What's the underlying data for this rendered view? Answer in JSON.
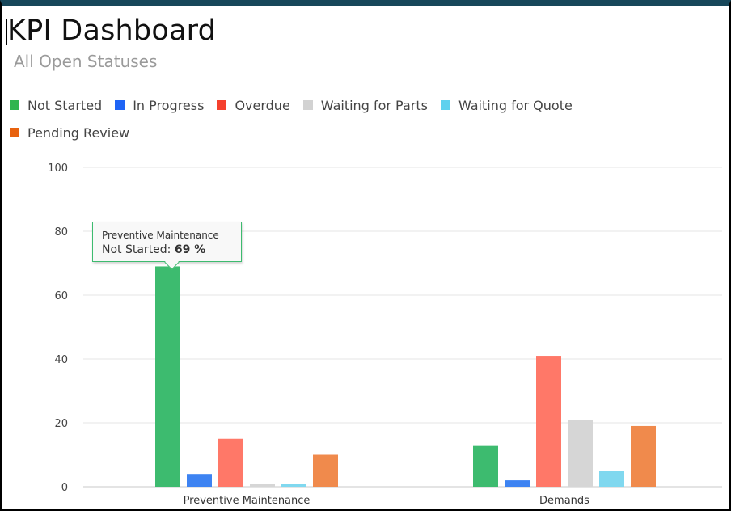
{
  "header": {
    "title": "KPI Dashboard",
    "subtitle": "All Open Statuses"
  },
  "tooltip": {
    "category": "Preventive Maintenance",
    "series_label": "Not Started:",
    "value_text": "69 %"
  },
  "chart_data": {
    "type": "bar",
    "categories": [
      "Preventive Maintenance",
      "Demands"
    ],
    "series": [
      {
        "name": "Not Started",
        "color": "#3dbb6f",
        "values": [
          69,
          13
        ]
      },
      {
        "name": "In Progress",
        "color": "#3d83f2",
        "values": [
          4,
          2
        ]
      },
      {
        "name": "Overdue",
        "color": "#ff7868",
        "values": [
          15,
          41
        ]
      },
      {
        "name": "Waiting for Parts",
        "color": "#d6d6d6",
        "values": [
          1,
          21
        ]
      },
      {
        "name": "Waiting for Quote",
        "color": "#80d8ef",
        "values": [
          1,
          5
        ]
      },
      {
        "name": "Pending Review",
        "color": "#f08a4c",
        "values": [
          10,
          19
        ]
      }
    ],
    "legend_swatch_colors": [
      "#2fb54e",
      "#1f64f5",
      "#f5402d",
      "#d2d2d2",
      "#5fd1ee",
      "#e8620f"
    ],
    "y_ticks": [
      0,
      20,
      40,
      60,
      80,
      100
    ],
    "ylim": [
      0,
      100
    ],
    "grid": true,
    "legend_position": "top-left"
  }
}
